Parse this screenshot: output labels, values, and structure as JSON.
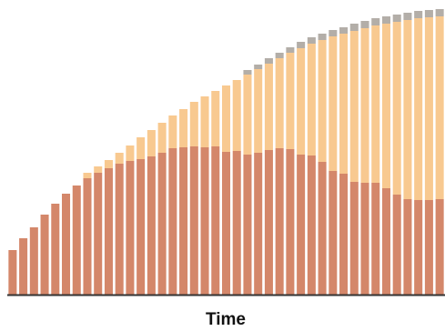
{
  "chart_data": {
    "type": "stacked_bar",
    "x_label": "Time",
    "categories": [
      null,
      null,
      null,
      null,
      null,
      null,
      null,
      null,
      null,
      null,
      null,
      null,
      null,
      null,
      null,
      null,
      null,
      null,
      null,
      null,
      null,
      null,
      null,
      null,
      null,
      null,
      null,
      null,
      null,
      null,
      null,
      null,
      null,
      null,
      null,
      null,
      null,
      null,
      null,
      null,
      null
    ],
    "series": [
      {
        "color": "#d4876a",
        "values": [
          49,
          62,
          74,
          88,
          100,
          111,
          120,
          128,
          134,
          139,
          144,
          147,
          149,
          152,
          156,
          161,
          162,
          163,
          162,
          163,
          157,
          158,
          154,
          156,
          159,
          161,
          160,
          154,
          153,
          146,
          136,
          133,
          124,
          123,
          123,
          117,
          110,
          105,
          104,
          104,
          105
        ]
      },
      {
        "color": "#f8c990",
        "values": [
          0,
          0,
          0,
          0,
          0,
          0,
          0,
          6,
          7,
          9,
          12,
          17,
          24,
          29,
          33,
          36,
          42,
          49,
          56,
          61,
          73,
          78,
          88,
          92,
          95,
          99,
          106,
          117,
          123,
          134,
          148,
          154,
          166,
          170,
          173,
          181,
          190,
          197,
          200,
          201,
          201
        ]
      },
      {
        "color": "#b3aea8",
        "values": [
          0,
          0,
          0,
          0,
          0,
          0,
          0,
          0,
          0,
          0,
          0,
          0,
          0,
          0,
          0,
          0,
          0,
          0,
          0,
          0,
          0,
          0,
          5,
          5,
          6,
          6,
          6,
          7,
          7,
          7,
          7,
          7,
          8,
          8,
          8,
          8,
          8,
          8,
          8,
          8,
          8
        ]
      }
    ],
    "ylim": [
      0,
      320
    ]
  }
}
